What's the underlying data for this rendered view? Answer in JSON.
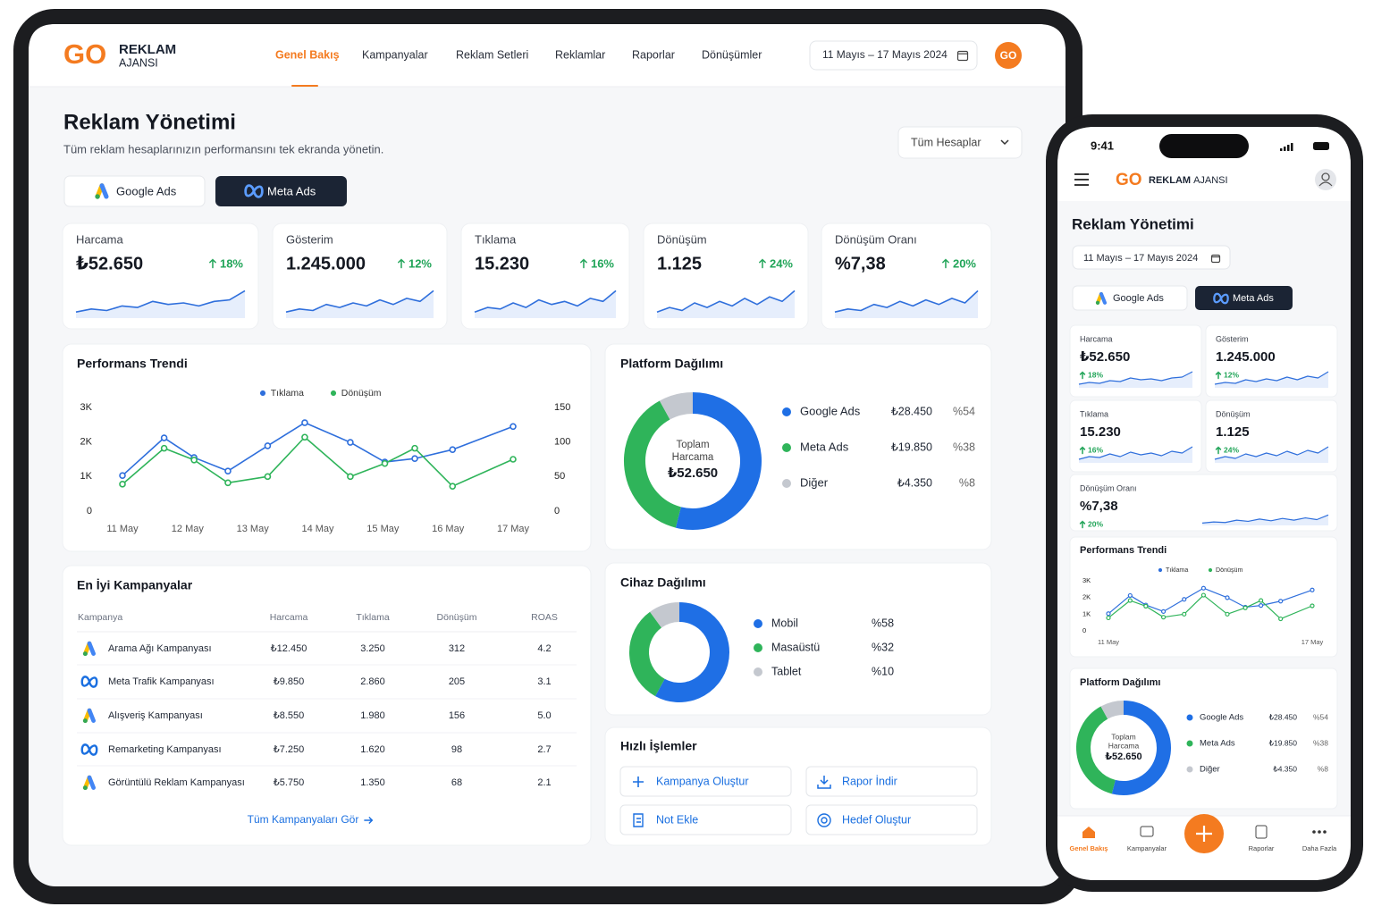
{
  "brand": {
    "logo": "GO",
    "name": "REKLAM",
    "sub": "AJANSI"
  },
  "nav": [
    "Genel Bakış",
    "Kampanyalar",
    "Reklam Setleri",
    "Reklamlar",
    "Raporlar",
    "Dönüşümler"
  ],
  "date_range": "11 Mayıs – 17 Mayıs 2024",
  "avatar": "GO",
  "page": {
    "title": "Reklam Yönetimi",
    "subtitle": "Tüm reklam hesaplarınızın performansını tek ekranda yönetin.",
    "account_select": "Tüm Hesaplar"
  },
  "platform_tabs": [
    "Google Ads",
    "Meta Ads"
  ],
  "sparkline_ylim": [
    0,
    10
  ],
  "kpis": [
    {
      "label": "Harcama",
      "value": "₺52.650",
      "change": "18%",
      "spark": [
        2,
        3,
        2.5,
        4,
        3.5,
        5.5,
        4.5,
        5,
        4,
        5.5,
        6,
        9
      ]
    },
    {
      "label": "Gösterim",
      "value": "1.245.000",
      "change": "12%",
      "spark": [
        2,
        3,
        2.5,
        4.5,
        3.5,
        5,
        4,
        6,
        4.5,
        6.5,
        5.5,
        9
      ]
    },
    {
      "label": "Tıklama",
      "value": "15.230",
      "change": "16%",
      "spark": [
        2,
        3.5,
        3,
        5,
        3.5,
        6,
        4.5,
        5.5,
        4,
        6.5,
        5.5,
        9
      ]
    },
    {
      "label": "Dönüşüm",
      "value": "1.125",
      "change": "24%",
      "spark": [
        2,
        3.5,
        2.5,
        5,
        3.5,
        5.5,
        4,
        6.5,
        4.5,
        7,
        5.5,
        9
      ]
    },
    {
      "label": "Dönüşüm Oranı",
      "value": "%7,38",
      "change": "20%",
      "spark": [
        2,
        3,
        2.5,
        4.5,
        3.5,
        5.5,
        4,
        6,
        4.5,
        6.5,
        5,
        9
      ]
    }
  ],
  "chart_data": {
    "type": "line",
    "title": "Performans Trendi",
    "x": [
      0,
      0.64,
      1.1,
      1.62,
      2.23,
      2.8,
      3.5,
      4.03,
      4.49,
      5.07,
      6
    ],
    "xlim": [
      0,
      6
    ],
    "xticks": [
      {
        "value": 0,
        "label": "11 May"
      },
      {
        "value": 1,
        "label": "12 May"
      },
      {
        "value": 2,
        "label": "13 May"
      },
      {
        "value": 3,
        "label": "14 May"
      },
      {
        "value": 4,
        "label": "15 May"
      },
      {
        "value": 5,
        "label": "16 May"
      },
      {
        "value": 6,
        "label": "17 May"
      }
    ],
    "ylim": [
      0,
      3000
    ],
    "yticks": [
      0,
      {
        "value": 1000,
        "label": "1K"
      },
      {
        "value": 2000,
        "label": "2K"
      },
      {
        "value": 3000,
        "label": "3K"
      }
    ],
    "y2lim": [
      0,
      150
    ],
    "y2ticks": [
      0,
      50,
      100,
      150
    ],
    "grid": false,
    "series": [
      {
        "name": "Tıklama",
        "color": "#2f6fdc",
        "values": [
          1030,
          2120,
          1550,
          1160,
          1890,
          2560,
          1990,
          1420,
          1520,
          1780,
          2450
        ]
      },
      {
        "name": "Dönüşüm",
        "color": "#2fb45a",
        "axis": "y2",
        "values": [
          39,
          91,
          74,
          41,
          50,
          107,
          50,
          69,
          91,
          36,
          75
        ]
      }
    ]
  },
  "platform": {
    "type": "donut",
    "title": "Platform Dağılımı",
    "center_label": [
      "Toplam",
      "Harcama"
    ],
    "center_value": "₺52.650",
    "names": [
      "Google Ads",
      "Meta Ads",
      "Diğer"
    ],
    "amounts": [
      "₺28.450",
      "₺19.850",
      "₺4.350"
    ],
    "values": [
      54,
      38,
      8
    ],
    "value_labels": [
      "%54",
      "%38",
      "%8"
    ],
    "colors": [
      "#1f6fe5",
      "#2fb45a",
      "#c4c8cf"
    ]
  },
  "device": {
    "type": "donut",
    "title": "Cihaz Dağılımı",
    "names": [
      "Mobil",
      "Masaüstü",
      "Tablet"
    ],
    "values": [
      58,
      32,
      10
    ],
    "value_labels": [
      "%58",
      "%32",
      "%10"
    ],
    "colors": [
      "#1f6fe5",
      "#2fb45a",
      "#c4c8cf"
    ]
  },
  "campaigns": {
    "title": "En İyi Kampanyalar",
    "columns": [
      "Kampanya",
      "Harcama",
      "Tıklama",
      "Dönüşüm",
      "ROAS"
    ],
    "row_icons": [
      "google",
      "meta",
      "google",
      "meta",
      "google"
    ],
    "rows": [
      [
        "Arama Ağı Kampanyası",
        "₺12.450",
        "3.250",
        "312",
        "4.2"
      ],
      [
        "Meta Trafik Kampanyası",
        "₺9.850",
        "2.860",
        "205",
        "3.1"
      ],
      [
        "Alışveriş Kampanyası",
        "₺8.550",
        "1.980",
        "156",
        "5.0"
      ],
      [
        "Remarketing Kampanyası",
        "₺7.250",
        "1.620",
        "98",
        "2.7"
      ],
      [
        "Görüntülü Reklam Kampanyası",
        "₺5.750",
        "1.350",
        "68",
        "2.1"
      ]
    ],
    "link": "Tüm Kampanyaları Gör"
  },
  "quick_actions": {
    "title": "Hızlı İşlemler",
    "items": [
      "Kampanya Oluştur",
      "Rapor İndir",
      "Not Ekle",
      "Hedef Oluştur"
    ]
  },
  "mobile": {
    "time": "9:41",
    "more": "Daha Fazla"
  }
}
